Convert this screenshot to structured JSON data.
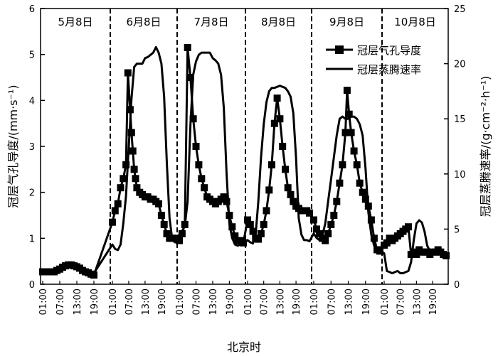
{
  "chart_data": {
    "type": "line",
    "xlabel": "北京时",
    "ylabel_left": "冠层气孔导度/(mm·s⁻¹)",
    "ylabel_right": "冠层蒸腾速率/(g·cm⁻²·h⁻¹)",
    "ylim_left": [
      0,
      6
    ],
    "ylim_right": [
      0,
      25
    ],
    "y_ticks_left": [
      "0",
      "1",
      "2",
      "3",
      "4",
      "5",
      "6"
    ],
    "y_ticks_right": [
      "0",
      "5",
      "10",
      "15",
      "20",
      "25"
    ],
    "x_tick_labels": [
      "01:00",
      "07:00",
      "13:00",
      "19:00"
    ],
    "periods": [
      "5月8日",
      "6月8日",
      "7月8日",
      "8月8日",
      "9月8日",
      "10月8日"
    ],
    "legend": {
      "position": "top-right",
      "entries": [
        "冠层气孔导度",
        "冠层蒸腾速率"
      ]
    },
    "grid": false,
    "series": [
      {
        "name": "冠层气孔导度",
        "axis": "left",
        "marker": "square",
        "segments": [
          [
            [
              0,
              0.27
            ],
            [
              1,
              0.27
            ],
            [
              2,
              0.27
            ],
            [
              3,
              0.27
            ],
            [
              4,
              0.27
            ],
            [
              5,
              0.3
            ],
            [
              6,
              0.33
            ],
            [
              7,
              0.37
            ],
            [
              8,
              0.4
            ],
            [
              9,
              0.42
            ],
            [
              10,
              0.42
            ],
            [
              11,
              0.4
            ],
            [
              12,
              0.38
            ],
            [
              13,
              0.35
            ],
            [
              14,
              0.3
            ],
            [
              15,
              0.27
            ],
            [
              16,
              0.25
            ],
            [
              17,
              0.22
            ],
            [
              18,
              0.2
            ]
          ],
          [
            [
              0,
              1.35
            ],
            [
              1,
              1.6
            ],
            [
              2,
              1.75
            ],
            [
              3,
              2.1
            ],
            [
              4,
              2.3
            ],
            [
              5,
              2.6
            ],
            [
              5.7,
              4.6
            ],
            [
              6.5,
              3.8
            ],
            [
              7,
              3.3
            ],
            [
              7.5,
              2.9
            ],
            [
              8,
              2.5
            ],
            [
              8.5,
              2.3
            ],
            [
              9,
              2.1
            ],
            [
              10,
              2.0
            ],
            [
              11,
              1.95
            ],
            [
              12,
              1.9
            ],
            [
              13,
              1.9
            ],
            [
              14,
              1.85
            ],
            [
              15,
              1.85
            ],
            [
              16,
              1.8
            ],
            [
              17,
              1.75
            ],
            [
              18,
              1.5
            ],
            [
              19,
              1.3
            ],
            [
              20,
              1.1
            ],
            [
              21,
              1.0
            ],
            [
              22,
              1.0
            ],
            [
              23,
              1.0
            ]
          ],
          [
            [
              0,
              0.95
            ],
            [
              1,
              1.1
            ],
            [
              2,
              1.3
            ],
            [
              3,
              5.15
            ],
            [
              4,
              4.5
            ],
            [
              5,
              3.6
            ],
            [
              6,
              3.0
            ],
            [
              7,
              2.6
            ],
            [
              8,
              2.3
            ],
            [
              9,
              2.1
            ],
            [
              10,
              1.9
            ],
            [
              11,
              1.85
            ],
            [
              12,
              1.8
            ],
            [
              13,
              1.75
            ],
            [
              14,
              1.8
            ],
            [
              15,
              1.85
            ],
            [
              16,
              1.9
            ],
            [
              17,
              1.8
            ],
            [
              18,
              1.5
            ],
            [
              19,
              1.25
            ],
            [
              20,
              1.05
            ],
            [
              21,
              0.95
            ],
            [
              22,
              0.95
            ],
            [
              23,
              0.9
            ]
          ],
          [
            [
              0,
              1.4
            ],
            [
              1,
              1.3
            ],
            [
              2,
              1.15
            ],
            [
              3,
              1.0
            ],
            [
              4,
              0.98
            ],
            [
              5,
              1.1
            ],
            [
              6,
              1.3
            ],
            [
              7,
              1.6
            ],
            [
              8,
              2.05
            ],
            [
              9,
              2.6
            ],
            [
              10,
              3.5
            ],
            [
              11,
              4.05
            ],
            [
              12,
              3.6
            ],
            [
              13,
              3.0
            ],
            [
              14,
              2.5
            ],
            [
              15,
              2.1
            ],
            [
              16,
              1.95
            ],
            [
              17,
              1.8
            ],
            [
              18,
              1.7
            ],
            [
              19,
              1.65
            ],
            [
              20,
              1.6
            ],
            [
              21,
              1.6
            ],
            [
              22,
              1.6
            ],
            [
              23,
              1.55
            ]
          ],
          [
            [
              0,
              1.4
            ],
            [
              1,
              1.2
            ],
            [
              2,
              1.1
            ],
            [
              3,
              1.0
            ],
            [
              4,
              0.95
            ],
            [
              5,
              1.1
            ],
            [
              6,
              1.3
            ],
            [
              7,
              1.5
            ],
            [
              8,
              1.8
            ],
            [
              9,
              2.2
            ],
            [
              10,
              2.6
            ],
            [
              11,
              3.3
            ],
            [
              11.6,
              4.22
            ],
            [
              12.3,
              3.7
            ],
            [
              13,
              3.3
            ],
            [
              14,
              2.9
            ],
            [
              15,
              2.6
            ],
            [
              16,
              2.2
            ],
            [
              17,
              2.0
            ],
            [
              18,
              1.85
            ],
            [
              19,
              1.7
            ],
            [
              20,
              1.4
            ],
            [
              21,
              1.0
            ],
            [
              22,
              0.75
            ],
            [
              23,
              0.72
            ]
          ],
          [
            [
              0,
              0.85
            ],
            [
              1,
              0.9
            ],
            [
              2,
              1.0
            ],
            [
              3,
              0.95
            ],
            [
              4,
              1.0
            ],
            [
              5,
              1.05
            ],
            [
              6,
              1.1
            ],
            [
              7,
              1.15
            ],
            [
              8,
              1.2
            ],
            [
              9,
              1.25
            ],
            [
              10,
              0.65
            ],
            [
              11,
              0.7
            ],
            [
              12,
              0.65
            ],
            [
              13,
              0.75
            ],
            [
              14,
              0.7
            ],
            [
              15,
              0.7
            ],
            [
              16,
              0.7
            ],
            [
              17,
              0.65
            ],
            [
              18,
              0.7
            ],
            [
              19,
              0.7
            ],
            [
              20,
              0.75
            ],
            [
              21,
              0.7
            ],
            [
              22,
              0.65
            ],
            [
              23,
              0.62
            ]
          ]
        ]
      },
      {
        "name": "冠层蒸腾速率",
        "axis": "right",
        "marker": "none",
        "segments": [
          [
            [
              0,
              1.0
            ],
            [
              3,
              1.0
            ],
            [
              6,
              1.3
            ],
            [
              8,
              1.55
            ],
            [
              10,
              1.65
            ],
            [
              13,
              1.45
            ],
            [
              16,
              1.2
            ],
            [
              18,
              1.0
            ]
          ],
          [
            [
              0,
              3.6
            ],
            [
              1,
              3.2
            ],
            [
              2,
              3.1
            ],
            [
              3,
              3.6
            ],
            [
              4,
              5.5
            ],
            [
              5,
              8.0
            ],
            [
              6,
              12.5
            ],
            [
              7,
              16.8
            ],
            [
              8,
              19.7
            ],
            [
              9,
              20.0
            ],
            [
              10,
              20.0
            ],
            [
              11,
              20.0
            ],
            [
              12,
              20.5
            ],
            [
              13,
              20.6
            ],
            [
              14,
              20.8
            ],
            [
              15,
              21.0
            ],
            [
              16,
              21.5
            ],
            [
              17,
              21.0
            ],
            [
              18,
              20.0
            ],
            [
              19,
              17.0
            ],
            [
              20,
              11.0
            ],
            [
              21,
              6.0
            ],
            [
              22,
              4.0
            ],
            [
              23,
              3.8
            ]
          ],
          [
            [
              0,
              4.5
            ],
            [
              1,
              4.8
            ],
            [
              2,
              5.3
            ],
            [
              3,
              7.5
            ],
            [
              4,
              14.5
            ],
            [
              5,
              19.0
            ],
            [
              6,
              20.2
            ],
            [
              7,
              20.8
            ],
            [
              8,
              21.0
            ],
            [
              9,
              21.0
            ],
            [
              10,
              21.0
            ],
            [
              11,
              21.0
            ],
            [
              12,
              20.5
            ],
            [
              13,
              20.3
            ],
            [
              14,
              20.0
            ],
            [
              15,
              19.0
            ],
            [
              16,
              16.0
            ],
            [
              17,
              10.0
            ],
            [
              18,
              5.5
            ],
            [
              19,
              4.2
            ],
            [
              20,
              3.6
            ],
            [
              21,
              3.5
            ],
            [
              22,
              3.6
            ],
            [
              23,
              3.6
            ]
          ],
          [
            [
              0,
              4.0
            ],
            [
              1,
              3.8
            ],
            [
              2,
              3.7
            ],
            [
              3,
              4.5
            ],
            [
              4,
              7.5
            ],
            [
              5,
              11.5
            ],
            [
              6,
              14.5
            ],
            [
              7,
              16.5
            ],
            [
              8,
              17.5
            ],
            [
              9,
              17.8
            ],
            [
              10,
              17.8
            ],
            [
              11,
              17.9
            ],
            [
              12,
              18.0
            ],
            [
              13,
              17.9
            ],
            [
              14,
              17.8
            ],
            [
              15,
              17.5
            ],
            [
              16,
              17.0
            ],
            [
              17,
              15.5
            ],
            [
              18,
              11.5
            ],
            [
              19,
              6.0
            ],
            [
              20,
              4.5
            ],
            [
              21,
              4.0
            ],
            [
              22,
              4.0
            ],
            [
              23,
              3.9
            ]
          ],
          [
            [
              0,
              4.6
            ],
            [
              1,
              4.2
            ],
            [
              2,
              4.0
            ],
            [
              3,
              4.4
            ],
            [
              4,
              5.5
            ],
            [
              5,
              7.5
            ],
            [
              6,
              9.5
            ],
            [
              7,
              11.5
            ],
            [
              8,
              13.5
            ],
            [
              9,
              15.0
            ],
            [
              10,
              15.2
            ],
            [
              11,
              15.0
            ],
            [
              12,
              15.0
            ],
            [
              13,
              15.2
            ],
            [
              14,
              15.2
            ],
            [
              15,
              15.0
            ],
            [
              16,
              14.5
            ],
            [
              17,
              13.5
            ],
            [
              18,
              10.5
            ],
            [
              19,
              6.5
            ],
            [
              20,
              4.5
            ],
            [
              21,
              3.5
            ],
            [
              22,
              3.0
            ],
            [
              23,
              3.0
            ]
          ],
          [
            [
              0,
              2.8
            ],
            [
              1,
              1.2
            ],
            [
              2,
              1.1
            ],
            [
              3,
              1.0
            ],
            [
              4,
              1.1
            ],
            [
              5,
              1.2
            ],
            [
              6,
              1.0
            ],
            [
              7,
              1.0
            ],
            [
              8,
              1.1
            ],
            [
              9,
              1.2
            ],
            [
              10,
              2.0
            ],
            [
              11,
              4.0
            ],
            [
              12,
              5.5
            ],
            [
              13,
              5.8
            ],
            [
              14,
              5.6
            ],
            [
              15,
              4.8
            ],
            [
              16,
              3.5
            ],
            [
              17,
              3.0
            ],
            [
              18,
              2.8
            ],
            [
              19,
              2.7
            ],
            [
              20,
              2.7
            ],
            [
              21,
              2.7
            ],
            [
              22,
              2.7
            ],
            [
              23,
              2.7
            ]
          ]
        ]
      }
    ]
  }
}
